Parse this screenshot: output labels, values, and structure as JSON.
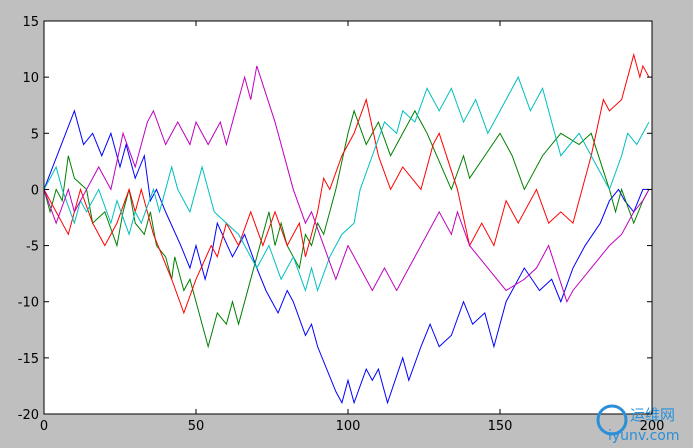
{
  "chart_data": {
    "type": "line",
    "xlim": [
      0,
      200
    ],
    "ylim": [
      -20,
      15
    ],
    "xticks": [
      0,
      50,
      100,
      150,
      200
    ],
    "yticks": [
      -20,
      -15,
      -10,
      -5,
      0,
      5,
      10,
      15
    ],
    "grid": false,
    "series": [
      {
        "color": "#0000ff",
        "x": [
          0,
          10,
          13,
          16,
          19,
          22,
          25,
          27,
          30,
          33,
          35,
          37,
          40,
          45,
          48,
          50,
          53,
          55,
          57,
          62,
          66,
          70,
          73,
          77,
          80,
          82,
          86,
          88,
          90,
          96,
          98,
          100,
          102,
          106,
          108,
          110,
          113,
          118,
          120,
          124,
          127,
          130,
          134,
          138,
          141,
          145,
          148,
          152,
          158,
          163,
          167,
          170,
          174,
          178,
          183,
          186,
          189,
          191,
          194,
          197,
          199
        ],
        "values": [
          0,
          7,
          4,
          5,
          3,
          5,
          2,
          4,
          1,
          3,
          -1,
          0,
          -2,
          -5,
          -7,
          -5,
          -8,
          -6,
          -3,
          -6,
          -4,
          -7,
          -9,
          -11,
          -9,
          -10,
          -13,
          -12,
          -14,
          -18,
          -19,
          -17,
          -19,
          -16,
          -17,
          -16,
          -19,
          -15,
          -17,
          -14,
          -12,
          -14,
          -13,
          -10,
          -12,
          -11,
          -14,
          -10,
          -7,
          -9,
          -8,
          -10,
          -7,
          -5,
          -3,
          -1,
          0,
          -1,
          -2,
          0,
          0
        ]
      },
      {
        "color": "#008000",
        "x": [
          0,
          2,
          4,
          6,
          8,
          10,
          14,
          16,
          20,
          24,
          26,
          28,
          30,
          33,
          35,
          37,
          40,
          42,
          43,
          46,
          48,
          52,
          54,
          57,
          60,
          62,
          64,
          71,
          74,
          76,
          78,
          80,
          84,
          86,
          88,
          90,
          92,
          96,
          100,
          102,
          106,
          110,
          114,
          118,
          122,
          126,
          134,
          138,
          140,
          145,
          150,
          154,
          158,
          164,
          170,
          176,
          180,
          186,
          188,
          190,
          194,
          197,
          199
        ],
        "values": [
          0,
          -2,
          0,
          -1,
          3,
          1,
          0,
          -3,
          -2,
          -5,
          -2,
          0,
          -3,
          -4,
          -2,
          -5,
          -6,
          -8,
          -6,
          -9,
          -8,
          -12,
          -14,
          -11,
          -12,
          -10,
          -12,
          -5,
          -2,
          -5,
          -3,
          -5,
          -7,
          -4,
          -5,
          -3,
          -4,
          0,
          5,
          7,
          4,
          6,
          3,
          5,
          7,
          5,
          0,
          3,
          1,
          3,
          5,
          3,
          0,
          3,
          5,
          4,
          5,
          0,
          -2,
          0,
          -3,
          -1,
          0
        ]
      },
      {
        "color": "#ff0000",
        "x": [
          0,
          4,
          8,
          12,
          16,
          20,
          24,
          28,
          30,
          32,
          36,
          42,
          46,
          50,
          55,
          57,
          60,
          64,
          68,
          72,
          76,
          80,
          84,
          86,
          90,
          92,
          94,
          98,
          102,
          106,
          110,
          114,
          118,
          124,
          128,
          130,
          136,
          140,
          144,
          148,
          152,
          156,
          162,
          166,
          170,
          174,
          180,
          184,
          186,
          190,
          194,
          196,
          197,
          199
        ],
        "values": [
          0,
          -2,
          -4,
          0,
          -3,
          -5,
          -3,
          0,
          -2,
          0,
          -4,
          -8,
          -11,
          -8,
          -5,
          -6,
          -3,
          -5,
          -2,
          -5,
          -2,
          -5,
          -3,
          -6,
          -2,
          1,
          0,
          3,
          5,
          8,
          3,
          0,
          2,
          0,
          4,
          5,
          0,
          -5,
          -3,
          -5,
          -1,
          -3,
          0,
          -3,
          -2,
          -3,
          3,
          8,
          7,
          8,
          12,
          10,
          11,
          10
        ]
      },
      {
        "color": "#00bfbf",
        "x": [
          0,
          4,
          6,
          10,
          12,
          14,
          18,
          22,
          24,
          28,
          30,
          32,
          36,
          38,
          42,
          44,
          48,
          52,
          56,
          60,
          64,
          70,
          74,
          78,
          82,
          86,
          88,
          90,
          94,
          98,
          102,
          104,
          108,
          112,
          116,
          118,
          122,
          126,
          130,
          134,
          138,
          142,
          146,
          150,
          156,
          160,
          164,
          170,
          176,
          180,
          186,
          190,
          192,
          195,
          199
        ],
        "values": [
          0,
          2,
          0,
          -3,
          -1,
          -2,
          0,
          -3,
          -1,
          -4,
          -2,
          -3,
          0,
          -2,
          2,
          0,
          -2,
          2,
          -2,
          -3,
          -4,
          -7,
          -5,
          -8,
          -6,
          -9,
          -7,
          -9,
          -6,
          -4,
          -3,
          0,
          3,
          6,
          5,
          7,
          6,
          9,
          7,
          9,
          6,
          8,
          5,
          7,
          10,
          7,
          9,
          3,
          5,
          3,
          0,
          3,
          5,
          4,
          6
        ]
      },
      {
        "color": "#bf00bf",
        "x": [
          0,
          4,
          8,
          10,
          14,
          18,
          22,
          26,
          30,
          34,
          36,
          40,
          44,
          48,
          50,
          54,
          58,
          60,
          66,
          68,
          70,
          76,
          82,
          86,
          88,
          92,
          96,
          100,
          104,
          108,
          112,
          116,
          120,
          126,
          130,
          134,
          136,
          140,
          146,
          152,
          158,
          162,
          166,
          172,
          174,
          180,
          186,
          190,
          194,
          197,
          199
        ],
        "values": [
          0,
          -3,
          0,
          -2,
          0,
          2,
          0,
          5,
          2,
          6,
          7,
          4,
          6,
          4,
          6,
          4,
          6,
          4,
          10,
          8,
          11,
          6,
          0,
          -3,
          -2,
          -5,
          -8,
          -5,
          -7,
          -9,
          -7,
          -9,
          -7,
          -4,
          -2,
          -4,
          -2,
          -5,
          -7,
          -9,
          -8,
          -7,
          -5,
          -10,
          -9,
          -7,
          -5,
          -4,
          -2,
          -1,
          0
        ]
      }
    ]
  },
  "watermark": {
    "name": "运维网",
    "url": "iyunv.com"
  }
}
